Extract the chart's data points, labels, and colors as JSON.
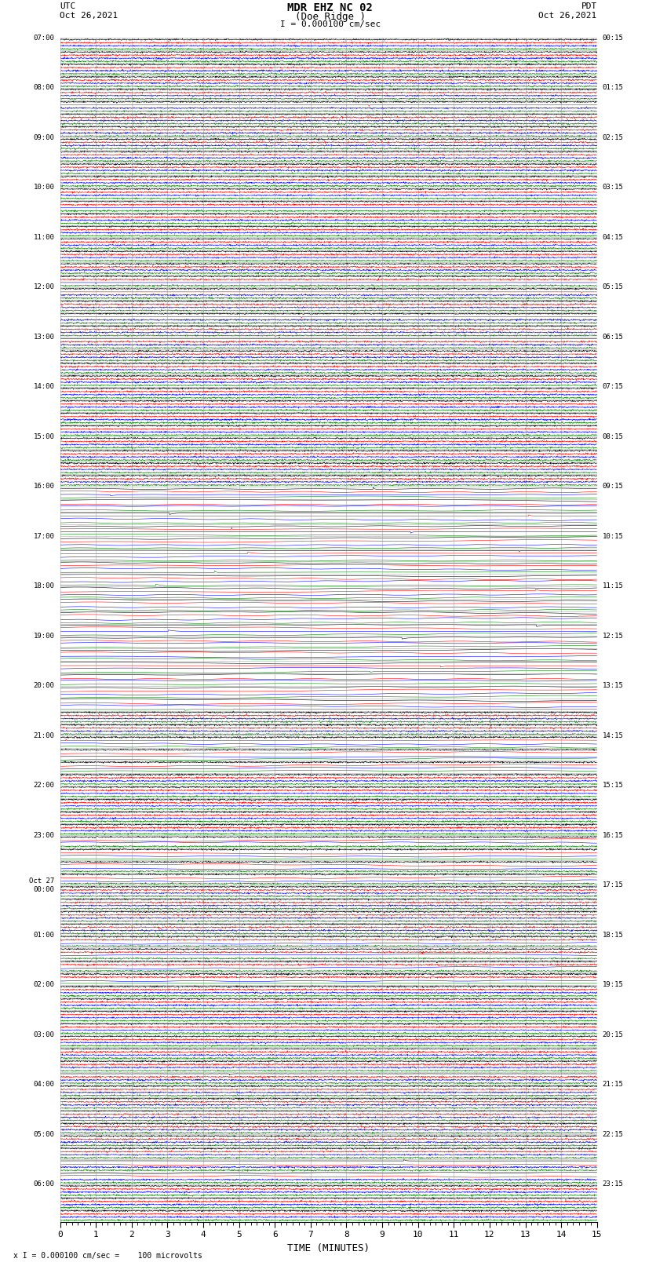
{
  "title_line1": "MDR EHZ NC 02",
  "title_line2": "(Doe Ridge )",
  "scale_label": "I = 0.000100 cm/sec",
  "bottom_label": "x I = 0.000100 cm/sec =    100 microvolts",
  "utc_label": "UTC",
  "utc_date": "Oct 26,2021",
  "pdt_label": "PDT",
  "pdt_date": "Oct 26,2021",
  "xlabel": "TIME (MINUTES)",
  "bg_color": "#ffffff",
  "grid_color": "#888888",
  "trace_colors": [
    "black",
    "red",
    "blue",
    "green"
  ],
  "left_times_utc": [
    "07:00",
    "",
    "",
    "",
    "08:00",
    "",
    "",
    "",
    "09:00",
    "",
    "",
    "",
    "10:00",
    "",
    "",
    "",
    "11:00",
    "",
    "",
    "",
    "12:00",
    "",
    "",
    "",
    "13:00",
    "",
    "",
    "",
    "14:00",
    "",
    "",
    "",
    "15:00",
    "",
    "",
    "",
    "16:00",
    "",
    "",
    "",
    "17:00",
    "",
    "",
    "",
    "18:00",
    "",
    "",
    "",
    "19:00",
    "",
    "",
    "",
    "20:00",
    "",
    "",
    "",
    "21:00",
    "",
    "",
    "",
    "22:00",
    "",
    "",
    "",
    "23:00",
    "",
    "",
    "",
    "Oct 27\n00:00",
    "",
    "",
    "",
    "01:00",
    "",
    "",
    "",
    "02:00",
    "",
    "",
    "",
    "03:00",
    "",
    "",
    "",
    "04:00",
    "",
    "",
    "",
    "05:00",
    "",
    "",
    "",
    "06:00",
    "",
    ""
  ],
  "right_times_pdt": [
    "00:15",
    "",
    "",
    "",
    "01:15",
    "",
    "",
    "",
    "02:15",
    "",
    "",
    "",
    "03:15",
    "",
    "",
    "",
    "04:15",
    "",
    "",
    "",
    "05:15",
    "",
    "",
    "",
    "06:15",
    "",
    "",
    "",
    "07:15",
    "",
    "",
    "",
    "08:15",
    "",
    "",
    "",
    "09:15",
    "",
    "",
    "",
    "10:15",
    "",
    "",
    "",
    "11:15",
    "",
    "",
    "",
    "12:15",
    "",
    "",
    "",
    "13:15",
    "",
    "",
    "",
    "14:15",
    "",
    "",
    "",
    "15:15",
    "",
    "",
    "",
    "16:15",
    "",
    "",
    "",
    "17:15",
    "",
    "",
    "",
    "18:15",
    "",
    "",
    "",
    "19:15",
    "",
    "",
    "",
    "20:15",
    "",
    "",
    "",
    "21:15",
    "",
    "",
    "",
    "22:15",
    "",
    "",
    "",
    "23:15",
    "",
    ""
  ],
  "n_rows": 95,
  "n_traces_per_row": 4,
  "noise_base": 0.06,
  "spike_prob": 0.0015,
  "spike_amplitude": 2.5,
  "event_row_groups": [
    {
      "rows": [
        36,
        37,
        38,
        39,
        40,
        41,
        42,
        43,
        44,
        45,
        46,
        47,
        48,
        49,
        50,
        51,
        52,
        53
      ],
      "amplitude": 12.0,
      "traces": [
        0,
        1,
        2,
        3
      ]
    },
    {
      "rows": [
        56,
        57,
        58
      ],
      "amplitude": 6.0,
      "traces": [
        1,
        2,
        3
      ]
    },
    {
      "rows": [
        64,
        65,
        66,
        67
      ],
      "amplitude": 5.0,
      "traces": [
        1,
        2
      ]
    },
    {
      "rows": [
        72,
        73,
        74,
        75
      ],
      "amplitude": 4.0,
      "traces": [
        2
      ]
    },
    {
      "rows": [
        80,
        81,
        82,
        83,
        84,
        85
      ],
      "amplitude": 3.0,
      "traces": [
        0,
        1,
        2
      ]
    },
    {
      "rows": [
        90,
        91
      ],
      "amplitude": 8.0,
      "traces": [
        0,
        1
      ]
    }
  ]
}
